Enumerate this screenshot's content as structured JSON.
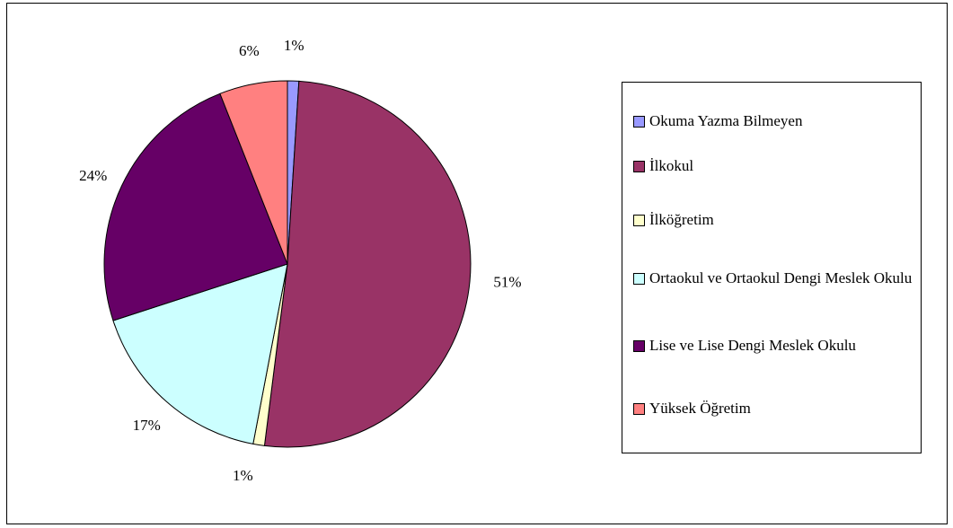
{
  "chart_data": {
    "type": "pie",
    "slices": [
      {
        "label": "Okuma Yazma Bilmeyen",
        "value": 1,
        "value_label": "1%",
        "color": "#9999ff"
      },
      {
        "label": "İlkokul",
        "value": 51,
        "value_label": "51%",
        "color": "#993366"
      },
      {
        "label": "İlköğretim",
        "value": 1,
        "value_label": "1%",
        "color": "#ffffcc"
      },
      {
        "label": "Ortaokul ve Ortaokul Dengi Meslek Okulu",
        "value": 17,
        "value_label": "17%",
        "color": "#ccffff"
      },
      {
        "label": "Lise ve Lise Dengi Meslek Okulu",
        "value": 24,
        "value_label": "24%",
        "color": "#660066"
      },
      {
        "label": "Yüksek Öğretim",
        "value": 6,
        "value_label": "6%",
        "color": "#ff8080"
      }
    ],
    "legend": "right"
  }
}
